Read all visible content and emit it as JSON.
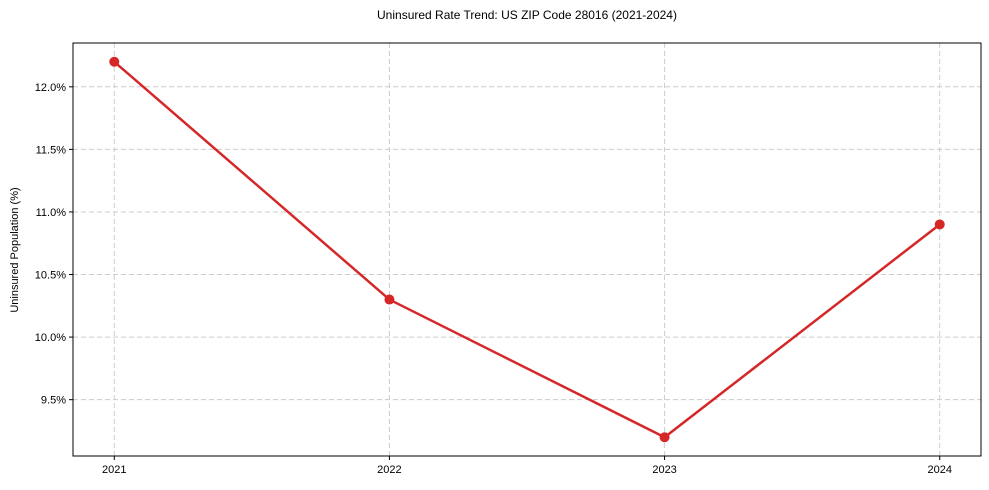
{
  "chart_data": {
    "type": "line",
    "title": "Uninsured Rate Trend: US ZIP Code 28016 (2021-2024)",
    "xlabel": "",
    "ylabel": "Uninsured Population (%)",
    "x": [
      2021,
      2022,
      2023,
      2024
    ],
    "x_tick_labels": [
      "2021",
      "2022",
      "2023",
      "2024"
    ],
    "values": [
      12.2,
      10.3,
      9.2,
      10.9
    ],
    "y_ticks": [
      9.5,
      10.0,
      10.5,
      11.0,
      11.5,
      12.0
    ],
    "y_tick_labels": [
      "9.5%",
      "10.0%",
      "10.5%",
      "11.0%",
      "11.5%",
      "12.0%"
    ],
    "xlim": [
      2020.85,
      2024.15
    ],
    "ylim": [
      9.05,
      12.35
    ],
    "grid": true,
    "grid_style": "dashed",
    "legend": false,
    "marker": "circle",
    "colors": {
      "line": "#d62728",
      "marker": "#d62728",
      "grid": "#cccccc",
      "axis": "#000000",
      "text": "#000000",
      "background": "#ffffff"
    }
  }
}
